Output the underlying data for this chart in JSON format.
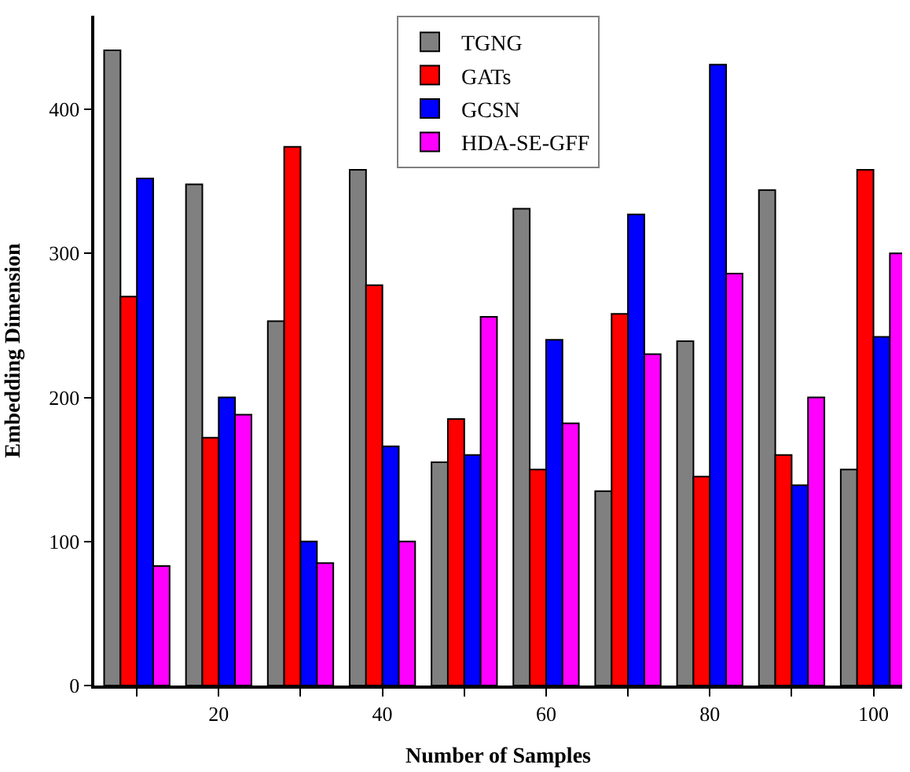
{
  "chart_data": {
    "type": "bar",
    "xlabel": "Number of Samples",
    "ylabel": "Embedding Dimension",
    "x": [
      10,
      20,
      30,
      40,
      50,
      60,
      70,
      80,
      90,
      100
    ],
    "series": [
      {
        "name": "TGNG",
        "color": "#808080",
        "values": [
          441,
          348,
          253,
          358,
          155,
          331,
          135,
          239,
          344,
          150
        ]
      },
      {
        "name": "GATs",
        "color": "#ff0000",
        "values": [
          270,
          172,
          374,
          278,
          185,
          150,
          258,
          145,
          160,
          358
        ]
      },
      {
        "name": "GCSN",
        "color": "#0000ff",
        "values": [
          352,
          200,
          100,
          166,
          160,
          240,
          327,
          431,
          139,
          242
        ]
      },
      {
        "name": "HDA-SE-GFF",
        "color": "#ff00ff",
        "values": [
          83,
          188,
          85,
          100,
          256,
          182,
          230,
          286,
          200,
          300
        ]
      }
    ],
    "xlim": [
      4.8,
      103.5
    ],
    "ylim": [
      0,
      465
    ],
    "xticks": [
      {
        "value": 10,
        "label": null
      },
      20,
      {
        "value": 30,
        "label": null
      },
      40,
      {
        "value": 50,
        "label": null
      },
      60,
      {
        "value": 70,
        "label": null
      },
      80,
      {
        "value": 90,
        "label": null
      },
      100
    ],
    "yticks": [
      0,
      100,
      200,
      300,
      400
    ],
    "legend": "top"
  }
}
